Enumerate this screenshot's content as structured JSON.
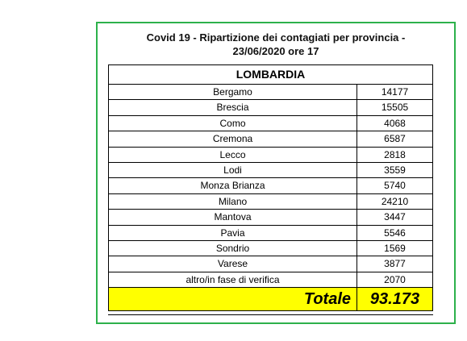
{
  "document": {
    "title_line1": "Covid 19 - Ripartizione dei contagiati per provincia -",
    "title_line2": "23/06/2020 ore 17",
    "region": "LOMBARDIA",
    "rows": [
      {
        "province": "Bergamo",
        "cases": "14177"
      },
      {
        "province": "Brescia",
        "cases": "15505"
      },
      {
        "province": "Como",
        "cases": "4068"
      },
      {
        "province": "Cremona",
        "cases": "6587"
      },
      {
        "province": "Lecco",
        "cases": "2818"
      },
      {
        "province": "Lodi",
        "cases": "3559"
      },
      {
        "province": "Monza Brianza",
        "cases": "5740"
      },
      {
        "province": "Milano",
        "cases": "24210"
      },
      {
        "province": "Mantova",
        "cases": "3447"
      },
      {
        "province": "Pavia",
        "cases": "5546"
      },
      {
        "province": "Sondrio",
        "cases": "1569"
      },
      {
        "province": "Varese",
        "cases": "3877"
      },
      {
        "province": "altro/in fase di verifica",
        "cases": "2070"
      }
    ],
    "total_label": "Totale",
    "total_value": "93.173"
  },
  "colors": {
    "frame_border": "#2db14b",
    "total_highlight": "#ffff00"
  }
}
